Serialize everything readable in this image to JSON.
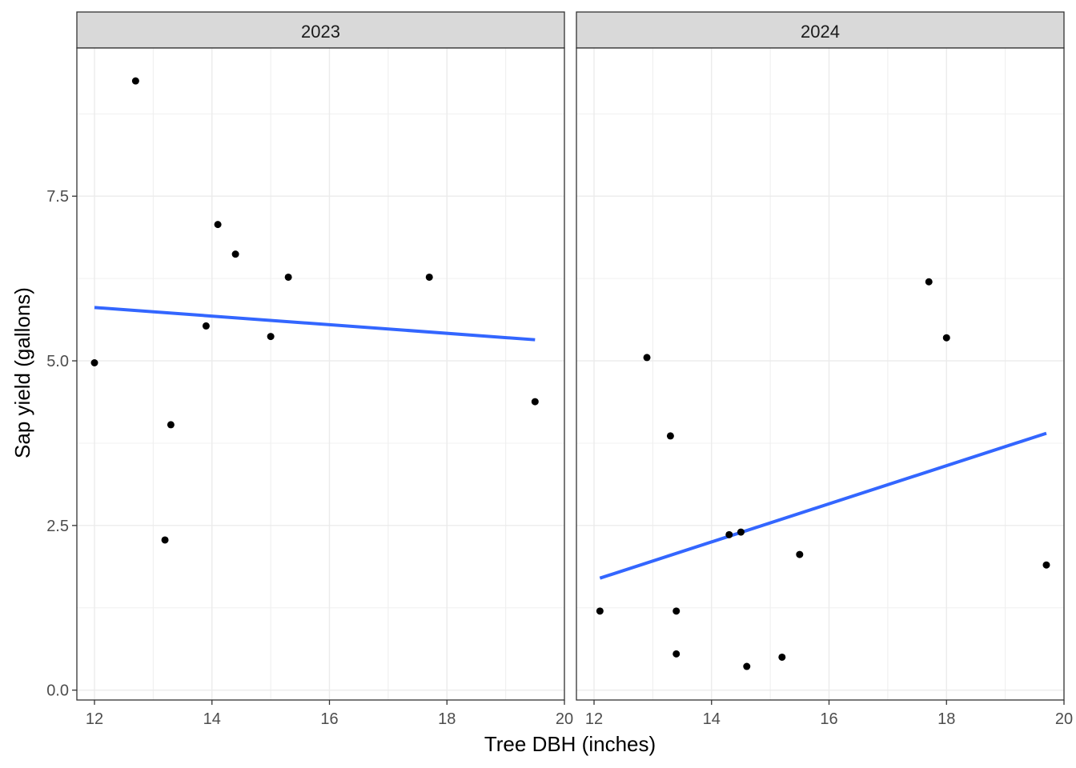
{
  "chart_data": {
    "type": "scatter",
    "xlabel": "Tree DBH (inches)",
    "ylabel": "Sap yield (gallons)",
    "xlim": [
      11.7,
      20.0
    ],
    "ylim": [
      -0.15,
      9.75
    ],
    "x_ticks": [
      12,
      14,
      16,
      18,
      20
    ],
    "x_tick_labels": [
      "12",
      "14",
      "16",
      "18",
      "20"
    ],
    "y_ticks": [
      0,
      2.5,
      5,
      7.5
    ],
    "y_tick_labels": [
      "0.0",
      "2.5",
      "5.0",
      "7.5"
    ],
    "grid": true,
    "point_color": "#000000",
    "trend_color": "#3366ff",
    "panels": [
      {
        "label": "2023",
        "points": [
          {
            "x": 12.0,
            "y": 4.97
          },
          {
            "x": 12.7,
            "y": 9.25
          },
          {
            "x": 13.2,
            "y": 2.28
          },
          {
            "x": 13.3,
            "y": 4.03
          },
          {
            "x": 13.9,
            "y": 5.53
          },
          {
            "x": 14.1,
            "y": 7.07
          },
          {
            "x": 14.4,
            "y": 6.62
          },
          {
            "x": 15.0,
            "y": 5.37
          },
          {
            "x": 15.3,
            "y": 6.27
          },
          {
            "x": 17.7,
            "y": 6.27
          },
          {
            "x": 19.5,
            "y": 4.38
          }
        ],
        "trend": {
          "x": [
            12.0,
            19.5
          ],
          "y": [
            5.81,
            5.32
          ]
        }
      },
      {
        "label": "2024",
        "points": [
          {
            "x": 12.1,
            "y": 1.2
          },
          {
            "x": 12.9,
            "y": 5.05
          },
          {
            "x": 13.3,
            "y": 3.86
          },
          {
            "x": 13.4,
            "y": 1.2
          },
          {
            "x": 13.4,
            "y": 0.55
          },
          {
            "x": 14.3,
            "y": 2.36
          },
          {
            "x": 14.5,
            "y": 2.4
          },
          {
            "x": 14.6,
            "y": 0.36
          },
          {
            "x": 15.2,
            "y": 0.5
          },
          {
            "x": 15.5,
            "y": 2.06
          },
          {
            "x": 17.7,
            "y": 6.2
          },
          {
            "x": 18.0,
            "y": 5.35
          },
          {
            "x": 19.7,
            "y": 1.9
          }
        ],
        "trend": {
          "x": [
            12.1,
            19.7
          ],
          "y": [
            1.7,
            3.9
          ]
        }
      }
    ]
  }
}
